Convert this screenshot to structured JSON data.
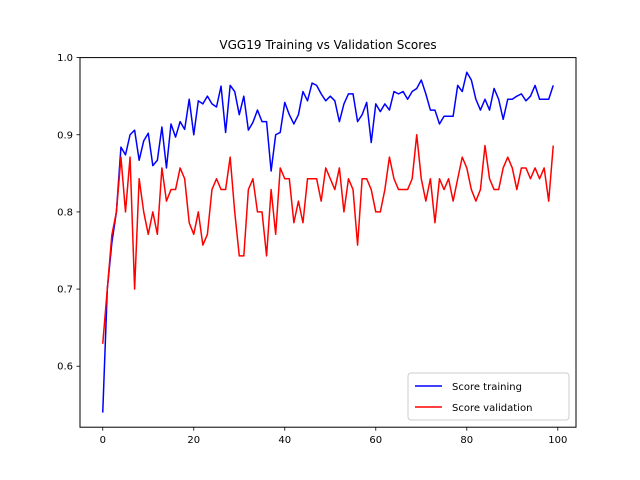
{
  "chart_data": {
    "type": "line",
    "title": "VGG19 Training vs Validation Scores",
    "xlabel": "",
    "ylabel": "",
    "xlim": [
      -5,
      104
    ],
    "ylim": [
      0.521,
      1.0
    ],
    "x_ticks": [
      0,
      20,
      40,
      60,
      80,
      100
    ],
    "y_ticks": [
      0.6,
      0.7,
      0.8,
      0.9,
      1.0
    ],
    "x_tick_labels": [
      "0",
      "20",
      "40",
      "60",
      "80",
      "100"
    ],
    "y_tick_labels": [
      "0.6",
      "0.7",
      "0.8",
      "0.9",
      "1.0"
    ],
    "grid": false,
    "legend_position": "lower-right",
    "series": [
      {
        "name": "Score training",
        "color": "#0000ff",
        "values": [
          0.54,
          0.7,
          0.76,
          0.8,
          0.884,
          0.874,
          0.9,
          0.906,
          0.867,
          0.892,
          0.902,
          0.86,
          0.867,
          0.91,
          0.857,
          0.914,
          0.897,
          0.917,
          0.907,
          0.946,
          0.9,
          0.944,
          0.94,
          0.95,
          0.94,
          0.936,
          0.963,
          0.903,
          0.964,
          0.956,
          0.926,
          0.95,
          0.906,
          0.916,
          0.932,
          0.917,
          0.917,
          0.853,
          0.9,
          0.903,
          0.942,
          0.926,
          0.914,
          0.926,
          0.956,
          0.944,
          0.967,
          0.964,
          0.953,
          0.944,
          0.95,
          0.944,
          0.917,
          0.94,
          0.953,
          0.953,
          0.917,
          0.926,
          0.942,
          0.89,
          0.94,
          0.93,
          0.94,
          0.932,
          0.956,
          0.953,
          0.956,
          0.946,
          0.956,
          0.96,
          0.971,
          0.953,
          0.932,
          0.932,
          0.914,
          0.924,
          0.924,
          0.924,
          0.964,
          0.956,
          0.981,
          0.971,
          0.946,
          0.932,
          0.946,
          0.932,
          0.96,
          0.946,
          0.92,
          0.946,
          0.946,
          0.95,
          0.953,
          0.944,
          0.95,
          0.964,
          0.946,
          0.946,
          0.946,
          0.964
        ]
      },
      {
        "name": "Score validation",
        "color": "#ff0000",
        "values": [
          0.629,
          0.7,
          0.77,
          0.8,
          0.871,
          0.8,
          0.871,
          0.7,
          0.843,
          0.8,
          0.771,
          0.8,
          0.771,
          0.857,
          0.814,
          0.829,
          0.829,
          0.857,
          0.843,
          0.786,
          0.771,
          0.8,
          0.757,
          0.771,
          0.829,
          0.843,
          0.829,
          0.829,
          0.871,
          0.8,
          0.743,
          0.743,
          0.829,
          0.843,
          0.8,
          0.8,
          0.743,
          0.829,
          0.771,
          0.857,
          0.843,
          0.843,
          0.786,
          0.814,
          0.786,
          0.843,
          0.843,
          0.843,
          0.814,
          0.857,
          0.843,
          0.829,
          0.857,
          0.8,
          0.843,
          0.829,
          0.757,
          0.843,
          0.843,
          0.829,
          0.8,
          0.8,
          0.829,
          0.871,
          0.843,
          0.829,
          0.829,
          0.829,
          0.843,
          0.9,
          0.843,
          0.814,
          0.843,
          0.786,
          0.843,
          0.829,
          0.843,
          0.814,
          0.843,
          0.871,
          0.857,
          0.829,
          0.814,
          0.829,
          0.886,
          0.843,
          0.829,
          0.829,
          0.857,
          0.871,
          0.857,
          0.829,
          0.857,
          0.857,
          0.843,
          0.857,
          0.843,
          0.857,
          0.814,
          0.886
        ]
      }
    ]
  }
}
